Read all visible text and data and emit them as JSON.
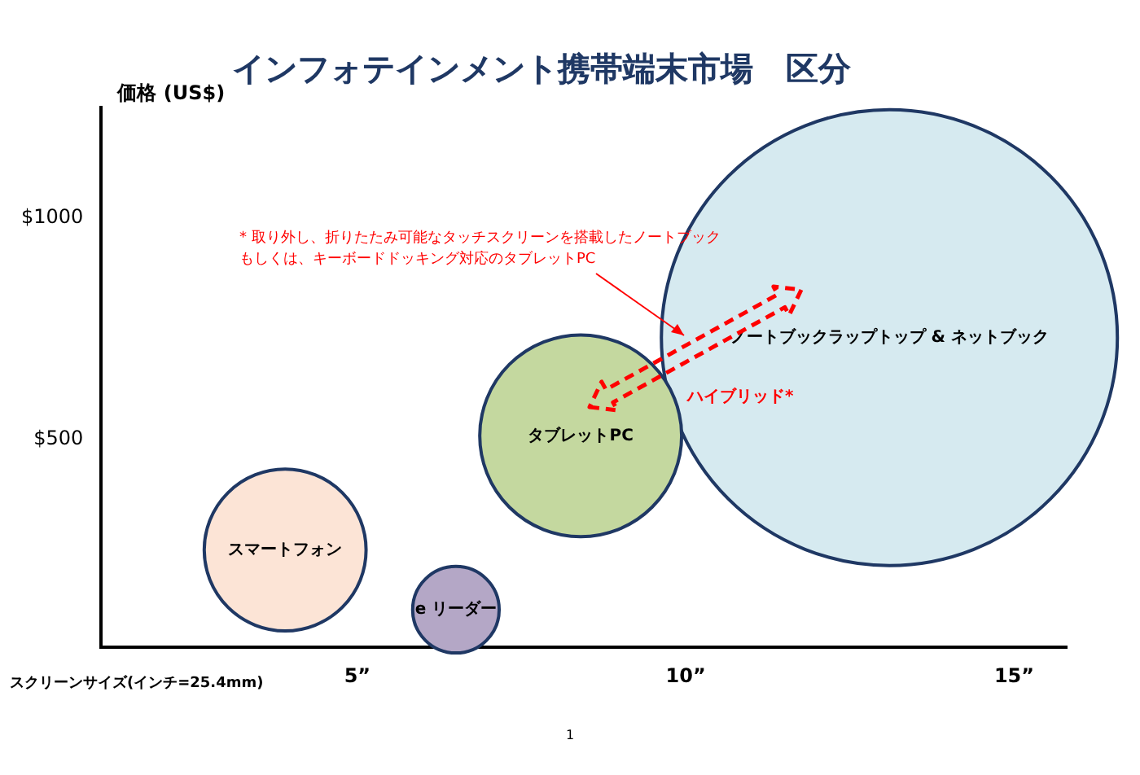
{
  "chart_data": {
    "type": "bubble",
    "title": "インフォテインメント携帯端末市場　区分",
    "xlabel": "スクリーンサイズ(インチ=25.4mm)",
    "ylabel": "価格 (US$)",
    "xlim": [
      1.1,
      15.8
    ],
    "xticks": [
      {
        "value": 5,
        "label": "5”"
      },
      {
        "value": 10,
        "label": "10”"
      },
      {
        "value": 15,
        "label": "15”"
      }
    ],
    "ylim": [
      30,
      1250
    ],
    "yticks": [
      {
        "value": 500,
        "label": "$500"
      },
      {
        "value": 1000,
        "label": "$1000"
      }
    ],
    "series": [
      {
        "name": "スマートフォン",
        "color": "#fce4d6",
        "x": [
          3.9
        ],
        "values": [
          250
        ],
        "sizes": [
          0.126
        ]
      },
      {
        "name": "e リーダー",
        "color": "#b4a7c6",
        "x": [
          6.5
        ],
        "values": [
          115
        ],
        "sizes": [
          0.036
        ]
      },
      {
        "name": "タブレットPC",
        "color": "#c4d89f",
        "x": [
          8.4
        ],
        "values": [
          508
        ],
        "sizes": [
          0.196
        ]
      },
      {
        "name": "ノートブックラップトップ & ネットブック",
        "color": "#d6eaf0",
        "x": [
          13.1
        ],
        "values": [
          730
        ],
        "sizes": [
          1
        ]
      }
    ],
    "annotations": [
      "* 取り外し、折りたたみ可能なタッチスクリーンを搭載したノートブック",
      "もしくは、キーボードドッキング対応のタブレットPC",
      "ハイブリッド*",
      "1"
    ],
    "legend": false
  }
}
